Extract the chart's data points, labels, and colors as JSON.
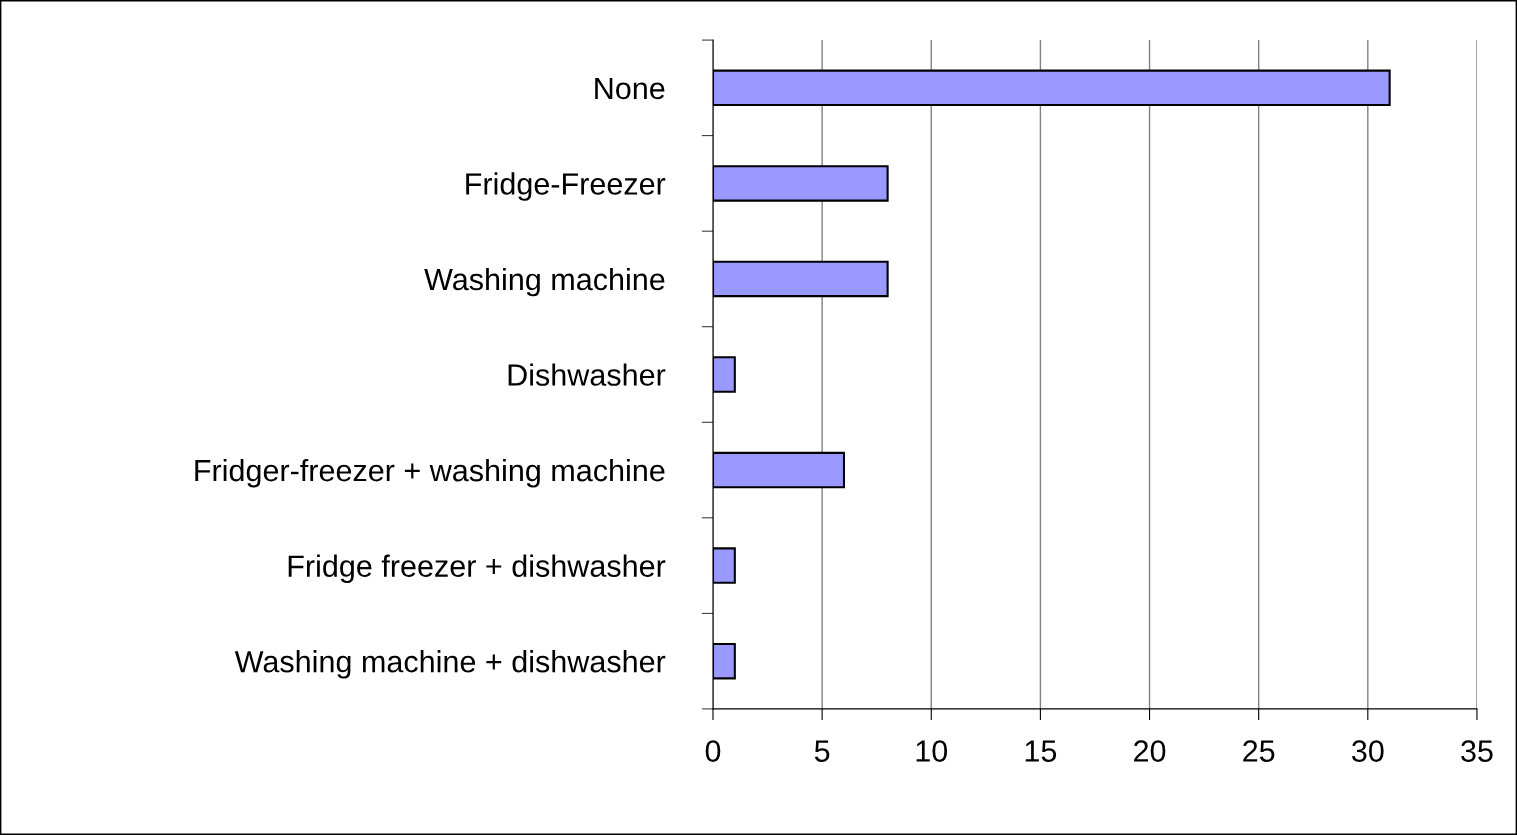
{
  "chart_data": {
    "type": "bar",
    "orientation": "horizontal",
    "categories": [
      "None",
      "Fridge-Freezer",
      "Washing machine",
      "Dishwasher",
      "Fridger-freezer + washing machine",
      "Fridge freezer + dishwasher",
      "Washing machine + dishwasher"
    ],
    "values": [
      31,
      8,
      8,
      1,
      6,
      1,
      1
    ],
    "color": "#9999ff",
    "xlim": [
      0,
      35
    ],
    "xticks": [
      0,
      5,
      10,
      15,
      20,
      25,
      30,
      35
    ],
    "grid": "x",
    "legend": false
  }
}
